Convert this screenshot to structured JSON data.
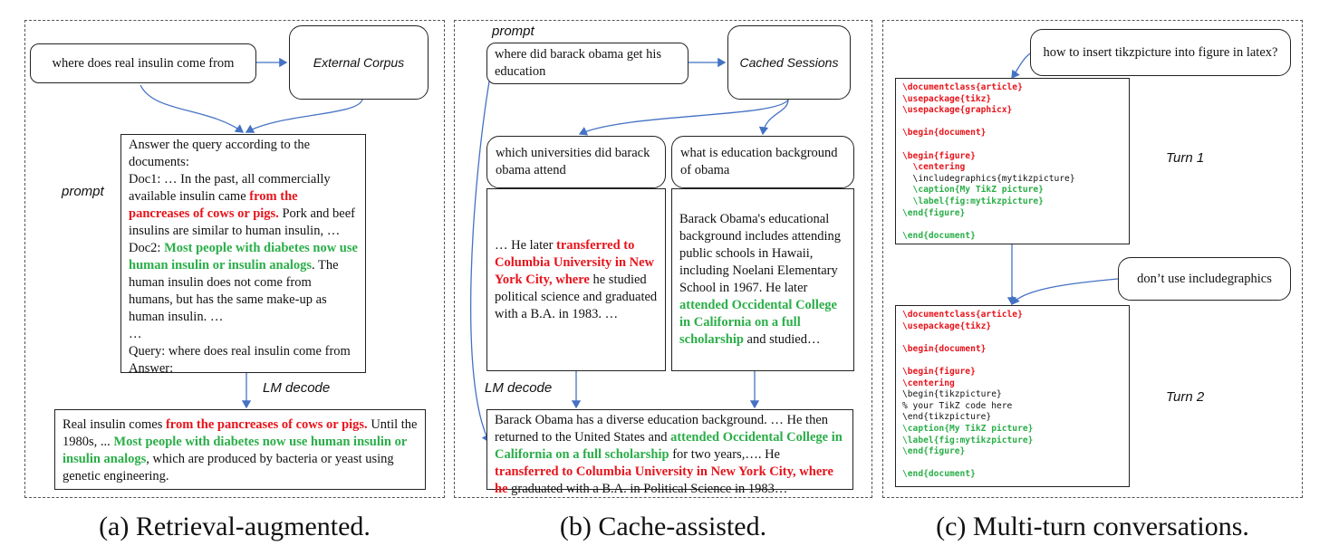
{
  "panel_a": {
    "query_box": "where does real insulin come from",
    "corpus_box": "External Corpus",
    "prompt_label": "prompt",
    "prompt": {
      "line1": "Answer the query according to the documents:",
      "doc1_pre": "Doc1: … In the past, all commercially available insulin came ",
      "doc1_red": "from the pancreases of cows or pigs.",
      "doc1_post": " Pork and beef insulins are similar to human insulin, …",
      "doc2_pre": "Doc2: ",
      "doc2_green": "Most people with diabetes now use human insulin or insulin analogs",
      "doc2_post": ". The human insulin does not come from humans, but has the same make-up as human insulin. …",
      "ellipsis": "…",
      "query": "Query: where does real insulin come from",
      "answer": "Answer:"
    },
    "decode_label": "LM decode",
    "output": {
      "pre": "Real insulin comes ",
      "red": "from the pancreases of cows or pigs.",
      "mid": " Until the 1980s, ... ",
      "green": "Most people with diabetes now use human insulin or insulin analogs",
      "post": ", which are produced by bacteria or yeast using genetic engineering."
    },
    "caption": "(a) Retrieval-augmented."
  },
  "panel_b": {
    "prompt_label": "prompt",
    "query_box": "where did barack obama get his education",
    "cache_box": "Cached Sessions",
    "session1_q": "which universities did barack obama attend",
    "session2_q": "what is education background of obama",
    "session1_ans": {
      "pre": "… He later ",
      "red": "transferred to Columbia University in New York City, where",
      "post": " he studied political science and graduated with a B.A. in 1983. …"
    },
    "session2_ans": {
      "pre": "Barack Obama's educational background includes attending public schools in Hawaii, including Noelani Elementary School in 1967. He later ",
      "green": "attended Occidental College in California on a full scholarship",
      "post": " and studied…"
    },
    "decode_label": "LM decode",
    "output": {
      "pre": "Barack Obama has a diverse education background. … He then returned to the United States and ",
      "green": "attended Occidental College in California on a full scholarship",
      "mid": " for two years,…. He ",
      "red": "transferred to Columbia University in New York City, where he",
      "post": " graduated with a B.A. in Political Science in 1983…"
    },
    "caption": "(b) Cache-assisted."
  },
  "panel_c": {
    "user_q1": "how to insert tikzpicture into figure in latex?",
    "user_q2": "don’t use includegraphics",
    "turn1_label": "Turn 1",
    "turn2_label": "Turn 2",
    "code1": [
      {
        "t": "\\documentclass{article}",
        "c": "red"
      },
      {
        "t": "\\usepackage{tikz}",
        "c": "red"
      },
      {
        "t": "\\usepackage{graphicx}",
        "c": "red"
      },
      {
        "t": "",
        "c": "blk"
      },
      {
        "t": "\\begin{document}",
        "c": "red"
      },
      {
        "t": "",
        "c": "blk"
      },
      {
        "t": "\\begin{figure}",
        "c": "red"
      },
      {
        "t": "  \\centering",
        "c": "red"
      },
      {
        "t": "  \\includegraphics{mytikzpicture}",
        "c": "blk"
      },
      {
        "t": "  \\caption{My TikZ picture}",
        "c": "grn"
      },
      {
        "t": "  \\label{fig:mytikzpicture}",
        "c": "grn"
      },
      {
        "t": "\\end{figure}",
        "c": "grn"
      },
      {
        "t": "",
        "c": "blk"
      },
      {
        "t": "\\end{document}",
        "c": "grn"
      }
    ],
    "code2": [
      {
        "t": "\\documentclass{article}",
        "c": "red"
      },
      {
        "t": "\\usepackage{tikz}",
        "c": "red"
      },
      {
        "t": "",
        "c": "blk"
      },
      {
        "t": "\\begin{document}",
        "c": "red"
      },
      {
        "t": "",
        "c": "blk"
      },
      {
        "t": "\\begin{figure}",
        "c": "red"
      },
      {
        "t": "\\centering",
        "c": "red"
      },
      {
        "t": "\\begin{tikzpicture}",
        "c": "blk"
      },
      {
        "t": "% your TikZ code here",
        "c": "blk"
      },
      {
        "t": "\\end{tikzpicture}",
        "c": "blk"
      },
      {
        "t": "\\caption{My TikZ picture}",
        "c": "grn"
      },
      {
        "t": "\\label{fig:mytikzpicture}",
        "c": "grn"
      },
      {
        "t": "\\end{figure}",
        "c": "grn"
      },
      {
        "t": "",
        "c": "blk"
      },
      {
        "t": "\\end{document}",
        "c": "grn"
      }
    ],
    "caption": "(c) Multi-turn conversations."
  },
  "colors": {
    "red": "#e8131b",
    "green": "#2aae48",
    "arrow": "#4472c4"
  }
}
